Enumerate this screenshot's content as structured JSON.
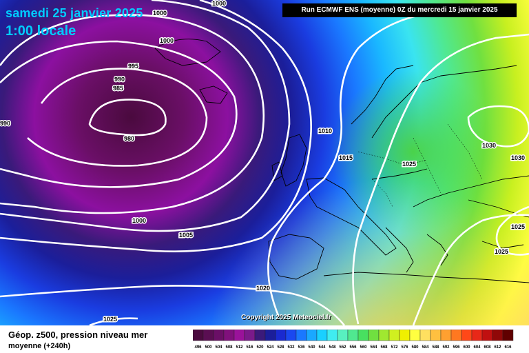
{
  "header": {
    "date": "samedi 25 janvier 2025",
    "time": "1:00 locale",
    "run": "Run ECMWF ENS (moyenne) 0Z du mercredi 15 janvier 2025"
  },
  "copyright": "Copyright 2025 Meteociel.fr",
  "footer": {
    "line1": "Géop. z500, pression niveau mer",
    "line2": "moyenne   (+240h)"
  },
  "isobar_labels": [
    "1000",
    "1000",
    "1000",
    "995",
    "990",
    "985",
    "980",
    "990",
    "1010",
    "1015",
    "1025",
    "1030",
    "1030",
    "1000",
    "1005",
    "1020",
    "1025",
    "1025",
    "1025"
  ],
  "legend": {
    "values": [
      "496",
      "500",
      "504",
      "508",
      "512",
      "516",
      "520",
      "524",
      "528",
      "532",
      "536",
      "540",
      "544",
      "548",
      "552",
      "556",
      "560",
      "564",
      "568",
      "572",
      "576",
      "580",
      "584",
      "588",
      "592",
      "596",
      "600",
      "604",
      "608",
      "612",
      "616"
    ],
    "colors": [
      "#4b0a3f",
      "#5a0e52",
      "#6a0f66",
      "#80107c",
      "#9a129a",
      "#7a1a8a",
      "#3b1a7a",
      "#1b1e9a",
      "#1a2ad0",
      "#1a48f0",
      "#1a78ff",
      "#1aa8ff",
      "#1ad0ff",
      "#40ecf0",
      "#58f0c0",
      "#50e890",
      "#48e060",
      "#70e040",
      "#a0e830",
      "#d0f020",
      "#f0f000",
      "#ffff40",
      "#ffe060",
      "#ffc040",
      "#ffa030",
      "#ff7820",
      "#ff4818",
      "#e82818",
      "#c01010",
      "#900808",
      "#600000"
    ]
  },
  "icons": {
    "map": "weather-map"
  }
}
